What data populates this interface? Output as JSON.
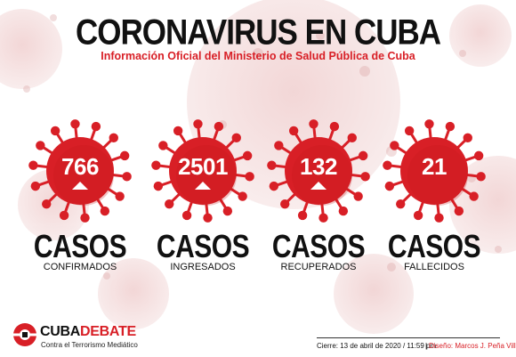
{
  "title": "CORONAVIRUS EN CUBA",
  "subtitle": "Información Oficial del Ministerio de Salud Pública de Cuba",
  "colors": {
    "accent": "#d81f26",
    "virus_dark": "#c4161c",
    "text": "#111111"
  },
  "stats": [
    {
      "count": "766",
      "heading": "CASOS",
      "label": "CONFIRMADOS",
      "arrow": true,
      "icon": "virus-icon"
    },
    {
      "count": "2501",
      "heading": "CASOS",
      "label": "INGRESADOS",
      "arrow": true,
      "icon": "virus-icon"
    },
    {
      "count": "132",
      "heading": "CASOS",
      "label": "RECUPERADOS",
      "arrow": true,
      "icon": "virus-icon"
    },
    {
      "count": "21",
      "heading": "CASOS",
      "label": "FALLECIDOS",
      "arrow": false,
      "icon": "virus-icon"
    }
  ],
  "logo": {
    "cuba": "CUBA",
    "debate": "DEBATE",
    "tagline": "Contra el Terrorismo Mediático"
  },
  "footer": {
    "cierre": "Cierre: 13 de abril de 2020 / 11:59 pm",
    "diseno": "Diseño: Marcos J. Peña Villa"
  }
}
